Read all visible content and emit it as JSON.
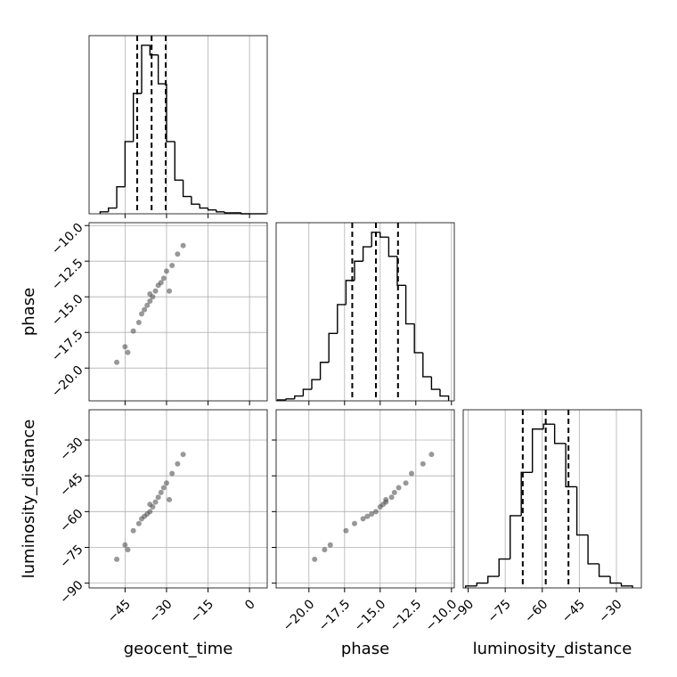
{
  "chart_data": [
    {
      "type": "histogram",
      "bins": [
        -54,
        -51,
        -48,
        -45,
        -42,
        -39,
        -36,
        -33,
        -30,
        -27,
        -24,
        -21,
        -18,
        -15,
        -12,
        -9,
        -6,
        -3,
        0,
        3,
        6
      ],
      "counts": [
        2,
        6,
        28,
        75,
        125,
        175,
        165,
        135,
        75,
        35,
        18,
        10,
        6,
        4,
        2,
        1,
        1,
        0,
        0,
        0
      ],
      "quantiles": [
        -40.6,
        -35.4,
        -30.3
      ],
      "xlim": [
        -58,
        6.4
      ],
      "ylim": [
        0,
        185
      ],
      "color": "#000000",
      "grid": true
    },
    {
      "type": "scatter",
      "ylabel": "phase",
      "x": [
        -45,
        -42,
        -40,
        -39,
        -38,
        -37,
        -36,
        -36,
        -35,
        -34,
        -33,
        -32,
        -31,
        -30,
        -28,
        -26,
        -44,
        -48,
        -24,
        -29
      ],
      "y": [
        -18.5,
        -17.4,
        -16.8,
        -16.2,
        -15.9,
        -15.6,
        -15.3,
        -14.8,
        -15.0,
        -14.6,
        -14.2,
        -14.0,
        -13.7,
        -13.2,
        -12.8,
        -12.0,
        -18.9,
        -19.6,
        -11.4,
        -14.6
      ],
      "xlim": [
        -58,
        6.4
      ],
      "ylim": [
        -22.3,
        -9.8
      ],
      "yticks": [
        {
          "value": -10,
          "label": "−10.0"
        },
        {
          "value": -12.5,
          "label": "−12.5"
        },
        {
          "value": -15,
          "label": "−15.0"
        },
        {
          "value": -17.5,
          "label": "−17.5"
        },
        {
          "value": -20,
          "label": "−20.0"
        }
      ],
      "color": "#444444",
      "grid": true
    },
    {
      "type": "histogram",
      "bins": [
        -22.2,
        -21.6,
        -21,
        -20.4,
        -19.8,
        -19.2,
        -18.6,
        -18,
        -17.4,
        -16.8,
        -16.2,
        -15.6,
        -15,
        -14.4,
        -13.8,
        -13.2,
        -12.6,
        -12,
        -11.4,
        -10.8,
        -10.2
      ],
      "counts": [
        1,
        2,
        5,
        12,
        22,
        40,
        70,
        100,
        125,
        145,
        160,
        175,
        170,
        150,
        120,
        80,
        50,
        25,
        12,
        5
      ],
      "quantiles": [
        -16.96,
        -15.3,
        -13.75
      ],
      "xlim": [
        -22.3,
        -9.8
      ],
      "ylim": [
        0,
        185
      ],
      "color": "#000000",
      "grid": true
    },
    {
      "type": "scatter",
      "xlabel": "geocent_time",
      "ylabel": "luminosity_distance",
      "x": [
        -45,
        -42,
        -40,
        -39,
        -38,
        -37,
        -36,
        -36,
        -35,
        -34,
        -33,
        -32,
        -31,
        -30,
        -28,
        -26,
        -44,
        -48,
        -24,
        -29
      ],
      "y": [
        -74,
        -68,
        -65,
        -63,
        -62,
        -61,
        -60,
        -57,
        -58,
        -56,
        -54,
        -52,
        -50,
        -48,
        -44,
        -40,
        -76,
        -80,
        -36,
        -55
      ],
      "xlim": [
        -58,
        6.4
      ],
      "ylim": [
        -92,
        -17.3
      ],
      "xticks": [
        {
          "value": -45,
          "label": "−45"
        },
        {
          "value": -30,
          "label": "−30"
        },
        {
          "value": -15,
          "label": "−15"
        },
        0
      ],
      "yticks": [
        {
          "value": -30,
          "label": "−30"
        },
        {
          "value": -45,
          "label": "−45"
        },
        {
          "value": -60,
          "label": "−60"
        },
        {
          "value": -75,
          "label": "−75"
        },
        {
          "value": -90,
          "label": "−90"
        }
      ],
      "color": "#444444",
      "grid": true
    },
    {
      "type": "scatter",
      "xlabel": "phase",
      "x": [
        -18.5,
        -17.4,
        -16.8,
        -16.2,
        -15.9,
        -15.6,
        -15.3,
        -14.8,
        -15.0,
        -14.6,
        -14.2,
        -14.0,
        -13.7,
        -13.2,
        -12.8,
        -12.0,
        -18.9,
        -19.6,
        -11.4,
        -14.6
      ],
      "y": [
        -74,
        -68,
        -65,
        -63,
        -62,
        -61,
        -60,
        -57,
        -58,
        -56,
        -54,
        -52,
        -50,
        -48,
        -44,
        -40,
        -76,
        -80,
        -36,
        -55
      ],
      "xlim": [
        -22.3,
        -9.8
      ],
      "ylim": [
        -92,
        -17.3
      ],
      "xticks": [
        {
          "value": -20,
          "label": "−20.0"
        },
        {
          "value": -17.5,
          "label": "−17.5"
        },
        {
          "value": -15,
          "label": "−15.0"
        },
        {
          "value": -12.5,
          "label": "−12.5"
        },
        {
          "value": -10,
          "label": "−10.0"
        }
      ],
      "color": "#444444",
      "grid": true
    },
    {
      "type": "histogram",
      "xlabel": "luminosity_distance",
      "bins": [
        -91,
        -86.5,
        -82,
        -77.5,
        -73,
        -68.5,
        -64,
        -59.5,
        -55,
        -50.5,
        -46,
        -41.5,
        -37,
        -32.5,
        -28,
        -23.5
      ],
      "counts": [
        2,
        5,
        12,
        30,
        75,
        120,
        165,
        170,
        150,
        105,
        55,
        25,
        12,
        5,
        2
      ],
      "quantiles": [
        -67.9,
        -58.6,
        -49.4
      ],
      "xlim": [
        -92,
        -19.9
      ],
      "ylim": [
        0,
        185
      ],
      "xticks": [
        {
          "value": -90,
          "label": "−90"
        },
        {
          "value": -75,
          "label": "−75"
        },
        {
          "value": -60,
          "label": "−60"
        },
        {
          "value": -45,
          "label": "−45"
        },
        {
          "value": -30,
          "label": "−30"
        }
      ],
      "color": "#000000",
      "grid": true
    }
  ]
}
